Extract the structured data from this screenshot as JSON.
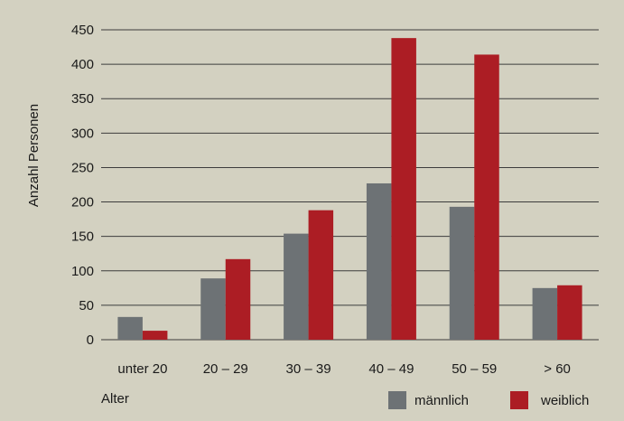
{
  "chart_data": {
    "type": "bar",
    "categories": [
      "unter 20",
      "20 – 29",
      "30 – 39",
      "40 – 49",
      "50 – 59",
      "> 60"
    ],
    "series": [
      {
        "name": "männlich",
        "values": [
          33,
          89,
          154,
          227,
          193,
          75
        ],
        "color": "#6d7275"
      },
      {
        "name": "weiblich",
        "values": [
          13,
          117,
          188,
          438,
          414,
          79
        ],
        "color": "#ac1d24"
      }
    ],
    "xlabel": "Alter",
    "ylabel": "Anzahl Personen",
    "ylim": [
      0,
      450
    ],
    "yticks": [
      0,
      50,
      100,
      150,
      200,
      250,
      300,
      350,
      400,
      450
    ],
    "grid": true,
    "legend_position": "bottom-right",
    "background_color": "#d3d1c1",
    "gridline_color": "#3c3c3c"
  }
}
